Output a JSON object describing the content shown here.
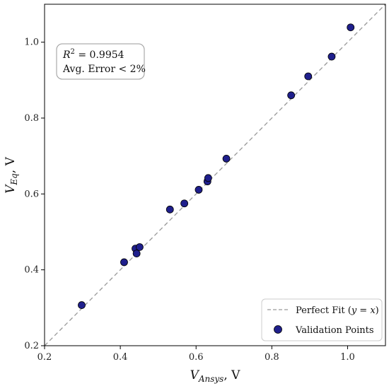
{
  "chart_data": {
    "type": "scatter",
    "title": "",
    "xlabel": {
      "main": "V",
      "sub": "Ansys",
      "unit": ", V"
    },
    "ylabel": {
      "main": "V",
      "sub": "Eq",
      "unit": ", V"
    },
    "xlim": [
      0.2,
      1.1
    ],
    "ylim": [
      0.2,
      1.1
    ],
    "xticks": [
      "0.2",
      "0.4",
      "0.6",
      "0.8",
      "1.0"
    ],
    "yticks": [
      "0.2",
      "0.4",
      "0.6",
      "0.8",
      "1.0"
    ],
    "grid": false,
    "legend_position": "bottom-right",
    "annotation": {
      "line1": {
        "var": "R",
        "sup": "2",
        "rest": " = 0.9954"
      },
      "line2": "Avg. Error < 2%"
    },
    "perfect_fit": {
      "name_prefix": "Perfect Fit (",
      "name_expr": "y = x",
      "name_suffix": ")",
      "color": "#999999",
      "style": "dashed"
    },
    "series": [
      {
        "name": "Validation Points",
        "color": "#1f1f8c",
        "points": [
          {
            "x": 0.298,
            "y": 0.307
          },
          {
            "x": 0.41,
            "y": 0.42
          },
          {
            "x": 0.44,
            "y": 0.456
          },
          {
            "x": 0.443,
            "y": 0.443
          },
          {
            "x": 0.451,
            "y": 0.46
          },
          {
            "x": 0.531,
            "y": 0.559
          },
          {
            "x": 0.569,
            "y": 0.575
          },
          {
            "x": 0.607,
            "y": 0.611
          },
          {
            "x": 0.63,
            "y": 0.633
          },
          {
            "x": 0.632,
            "y": 0.642
          },
          {
            "x": 0.68,
            "y": 0.693
          },
          {
            "x": 0.851,
            "y": 0.86
          },
          {
            "x": 0.896,
            "y": 0.91
          },
          {
            "x": 0.958,
            "y": 0.962
          },
          {
            "x": 1.008,
            "y": 1.039
          }
        ]
      }
    ]
  }
}
